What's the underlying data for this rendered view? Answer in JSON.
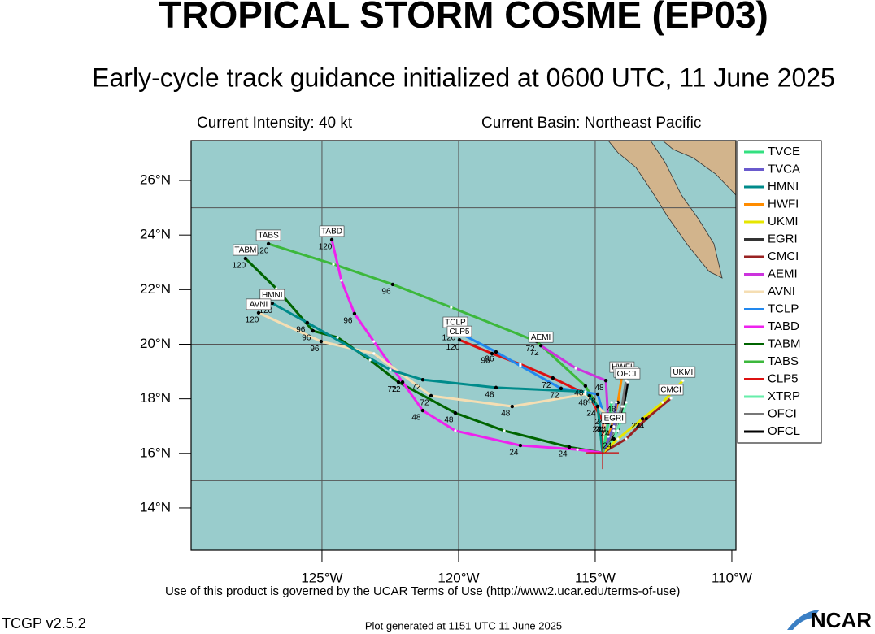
{
  "chart_data": {
    "type": "track",
    "title": "TROPICAL STORM COSME (EP03)",
    "subtitle": "Early-cycle track guidance initialized at 0600 UTC, 11 June 2025",
    "intensity": "Current Intensity: 40 kt",
    "basin": "Current Basin: Northeast Pacific",
    "xlim": [
      -129.79,
      -109.85
    ],
    "ylim": [
      12.45,
      27.46
    ],
    "xticks": [
      {
        "value": -125,
        "label": "125°W"
      },
      {
        "value": -120,
        "label": "120°W"
      },
      {
        "value": -115,
        "label": "115°W"
      },
      {
        "value": -110,
        "label": "110°W"
      }
    ],
    "yticks": [
      {
        "value": 14,
        "label": "14°N"
      },
      {
        "value": 16,
        "label": "16°N"
      },
      {
        "value": 18,
        "label": "18°N"
      },
      {
        "value": 20,
        "label": "20°N"
      },
      {
        "value": 22,
        "label": "22°N"
      },
      {
        "value": 24,
        "label": "24°N"
      },
      {
        "value": 26,
        "label": "26°N"
      }
    ],
    "grid_lon": [
      -125,
      -120,
      -115
    ],
    "grid_lat": [
      15,
      20,
      25
    ],
    "tracks": [
      {
        "name": "TVCE",
        "color": "#33e080",
        "tag": false,
        "lon": [
          -114.73,
          -114.52,
          -114.4
        ],
        "lat": [
          16.02,
          17.13,
          17.87
        ],
        "hours": [
          null,
          24,
          null
        ]
      },
      {
        "name": "TVCA",
        "color": "#6a5acd",
        "tag": false,
        "lon": [
          -114.73,
          -114.32,
          -114.23
        ],
        "lat": [
          16.02,
          16.98,
          17.87
        ]
      },
      {
        "name": "HMNI",
        "color": "#008b8b",
        "tag": true,
        "lon": [
          -114.73,
          -114.91,
          -115.36,
          -118.63,
          -121.31,
          -122.5,
          -125.54,
          -126.82
        ],
        "lat": [
          16.02,
          17.72,
          18.26,
          18.41,
          18.7,
          19.06,
          20.79,
          21.5
        ],
        "hours": [
          null,
          24,
          null,
          48,
          72,
          null,
          96,
          120
        ]
      },
      {
        "name": "HWFI",
        "color": "#ff8c00",
        "tag": true,
        "lon": [
          -114.73,
          -114.4,
          -114.17,
          -114.02
        ],
        "lat": [
          16.02,
          16.98,
          17.87,
          18.85
        ],
        "hours": [
          null,
          24,
          48,
          null
        ]
      },
      {
        "name": "UKMI",
        "color": "#e6e600",
        "tag": true,
        "lon": [
          -114.73,
          -114.17,
          -113.27,
          -112.53,
          -111.79
        ],
        "lat": [
          16.02,
          16.53,
          17.27,
          17.87,
          18.67
        ],
        "hours": [
          null,
          null,
          24,
          null,
          null
        ]
      },
      {
        "name": "EGRI",
        "color": "#333333",
        "tag": true,
        "lon": [
          -114.73,
          -114.52,
          -114.32
        ],
        "lat": [
          16.02,
          16.62,
          16.98
        ]
      },
      {
        "name": "CMCI",
        "color": "#992222",
        "tag": true,
        "lon": [
          -114.73,
          -113.87,
          -113.13,
          -112.23
        ],
        "lat": [
          16.02,
          16.53,
          17.27,
          18.02
        ],
        "hours": [
          null,
          null,
          24,
          null
        ]
      },
      {
        "name": "AEMI",
        "color": "#cc33dd",
        "tag": true,
        "lon": [
          -114.73,
          -114.52,
          -114.61,
          -115.71,
          -116.99
        ],
        "lat": [
          16.02,
          17.13,
          18.67,
          19.12,
          19.95
        ],
        "hours": [
          null,
          24,
          48,
          null,
          72
        ]
      },
      {
        "name": "AVNI",
        "color": "#f5deb3",
        "tag": true,
        "lon": [
          -114.73,
          -114.61,
          -115.36,
          -118.04,
          -121.01,
          -123.1,
          -125.03,
          -127.32
        ],
        "lat": [
          16.02,
          17.42,
          18.17,
          17.72,
          18.11,
          19.66,
          20.1,
          21.15
        ],
        "hours": [
          null,
          24,
          null,
          48,
          72,
          null,
          96,
          120
        ]
      },
      {
        "name": "TCLP",
        "color": "#2288ee",
        "tag": true,
        "lon": [
          -114.73,
          -114.61,
          -114.91,
          -116.25,
          -117.74,
          -118.63,
          -120.12
        ],
        "lat": [
          16.02,
          17.13,
          18.17,
          18.38,
          19.21,
          19.72,
          20.49
        ],
        "hours": [
          null,
          24,
          48,
          72,
          null,
          96,
          120
        ]
      },
      {
        "name": "TABD",
        "color": "#ee22ee",
        "tag": true,
        "lon": [
          -114.73,
          -115.65,
          -117.74,
          -120.12,
          -121.31,
          -122.05,
          -123.1,
          -123.81,
          -124.29,
          -124.64
        ],
        "lat": [
          16.02,
          16.14,
          16.29,
          16.83,
          17.57,
          18.61,
          20.1,
          21.12,
          22.34,
          23.83
        ],
        "hours": [
          null,
          null,
          24,
          null,
          48,
          72,
          null,
          96,
          null,
          120
        ]
      },
      {
        "name": "TABM",
        "color": "#006400",
        "tag": true,
        "lon": [
          -114.73,
          -115.95,
          -118.33,
          -120.12,
          -122.2,
          -123.24,
          -124.43,
          -125.33,
          -126.67,
          -127.8
        ],
        "lat": [
          16.02,
          16.23,
          16.83,
          17.48,
          18.61,
          19.42,
          20.25,
          20.49,
          22.04,
          23.14
        ],
        "hours": [
          null,
          24,
          null,
          48,
          72,
          null,
          null,
          96,
          null,
          120
        ]
      },
      {
        "name": "TABS",
        "color": "#3cb83c",
        "tag": true,
        "lon": [
          -114.73,
          -114.91,
          -115.36,
          -117.14,
          -120.27,
          -122.41,
          -124.58,
          -126.96
        ],
        "lat": [
          16.02,
          17.72,
          18.47,
          20.1,
          21.35,
          22.19,
          22.93,
          23.68
        ],
        "hours": [
          null,
          24,
          48,
          72,
          null,
          96,
          null,
          120
        ]
      },
      {
        "name": "CLP5",
        "color": "#dd1111",
        "tag": true,
        "lon": [
          -114.73,
          -114.7,
          -115.21,
          -116.55,
          -117.74,
          -118.78,
          -119.97
        ],
        "lat": [
          16.02,
          17.13,
          18.11,
          18.76,
          19.27,
          19.66,
          20.16
        ],
        "hours": [
          null,
          24,
          48,
          72,
          null,
          96,
          120
        ]
      },
      {
        "name": "XTRP",
        "color": "#66eeaa",
        "tag": false,
        "lon": [
          -114.73,
          -114.32,
          -114.02,
          -113.87
        ],
        "lat": [
          16.02,
          16.53,
          17.27,
          17.87
        ],
        "hours": [
          null,
          24,
          null,
          null
        ]
      },
      {
        "name": "OFCI",
        "color": "#777777",
        "tag": true,
        "lon": [
          -114.73,
          -114.32,
          -114.02,
          -113.87
        ],
        "lat": [
          16.02,
          16.83,
          17.72,
          18.67
        ]
      },
      {
        "name": "OFCL",
        "color": "#000000",
        "tag": true,
        "lon": [
          -114.73,
          -114.17,
          -113.96,
          -113.81
        ],
        "lat": [
          16.02,
          16.83,
          17.72,
          18.61
        ]
      }
    ],
    "terms": "Use of this product is governed by the UCAR Terms of Use (http://www2.ucar.edu/terms-of-use)",
    "version": "TCGP v2.5.2",
    "generated": "Plot generated at 1151 UTC   11 June 2025",
    "logo": "NCAR"
  }
}
